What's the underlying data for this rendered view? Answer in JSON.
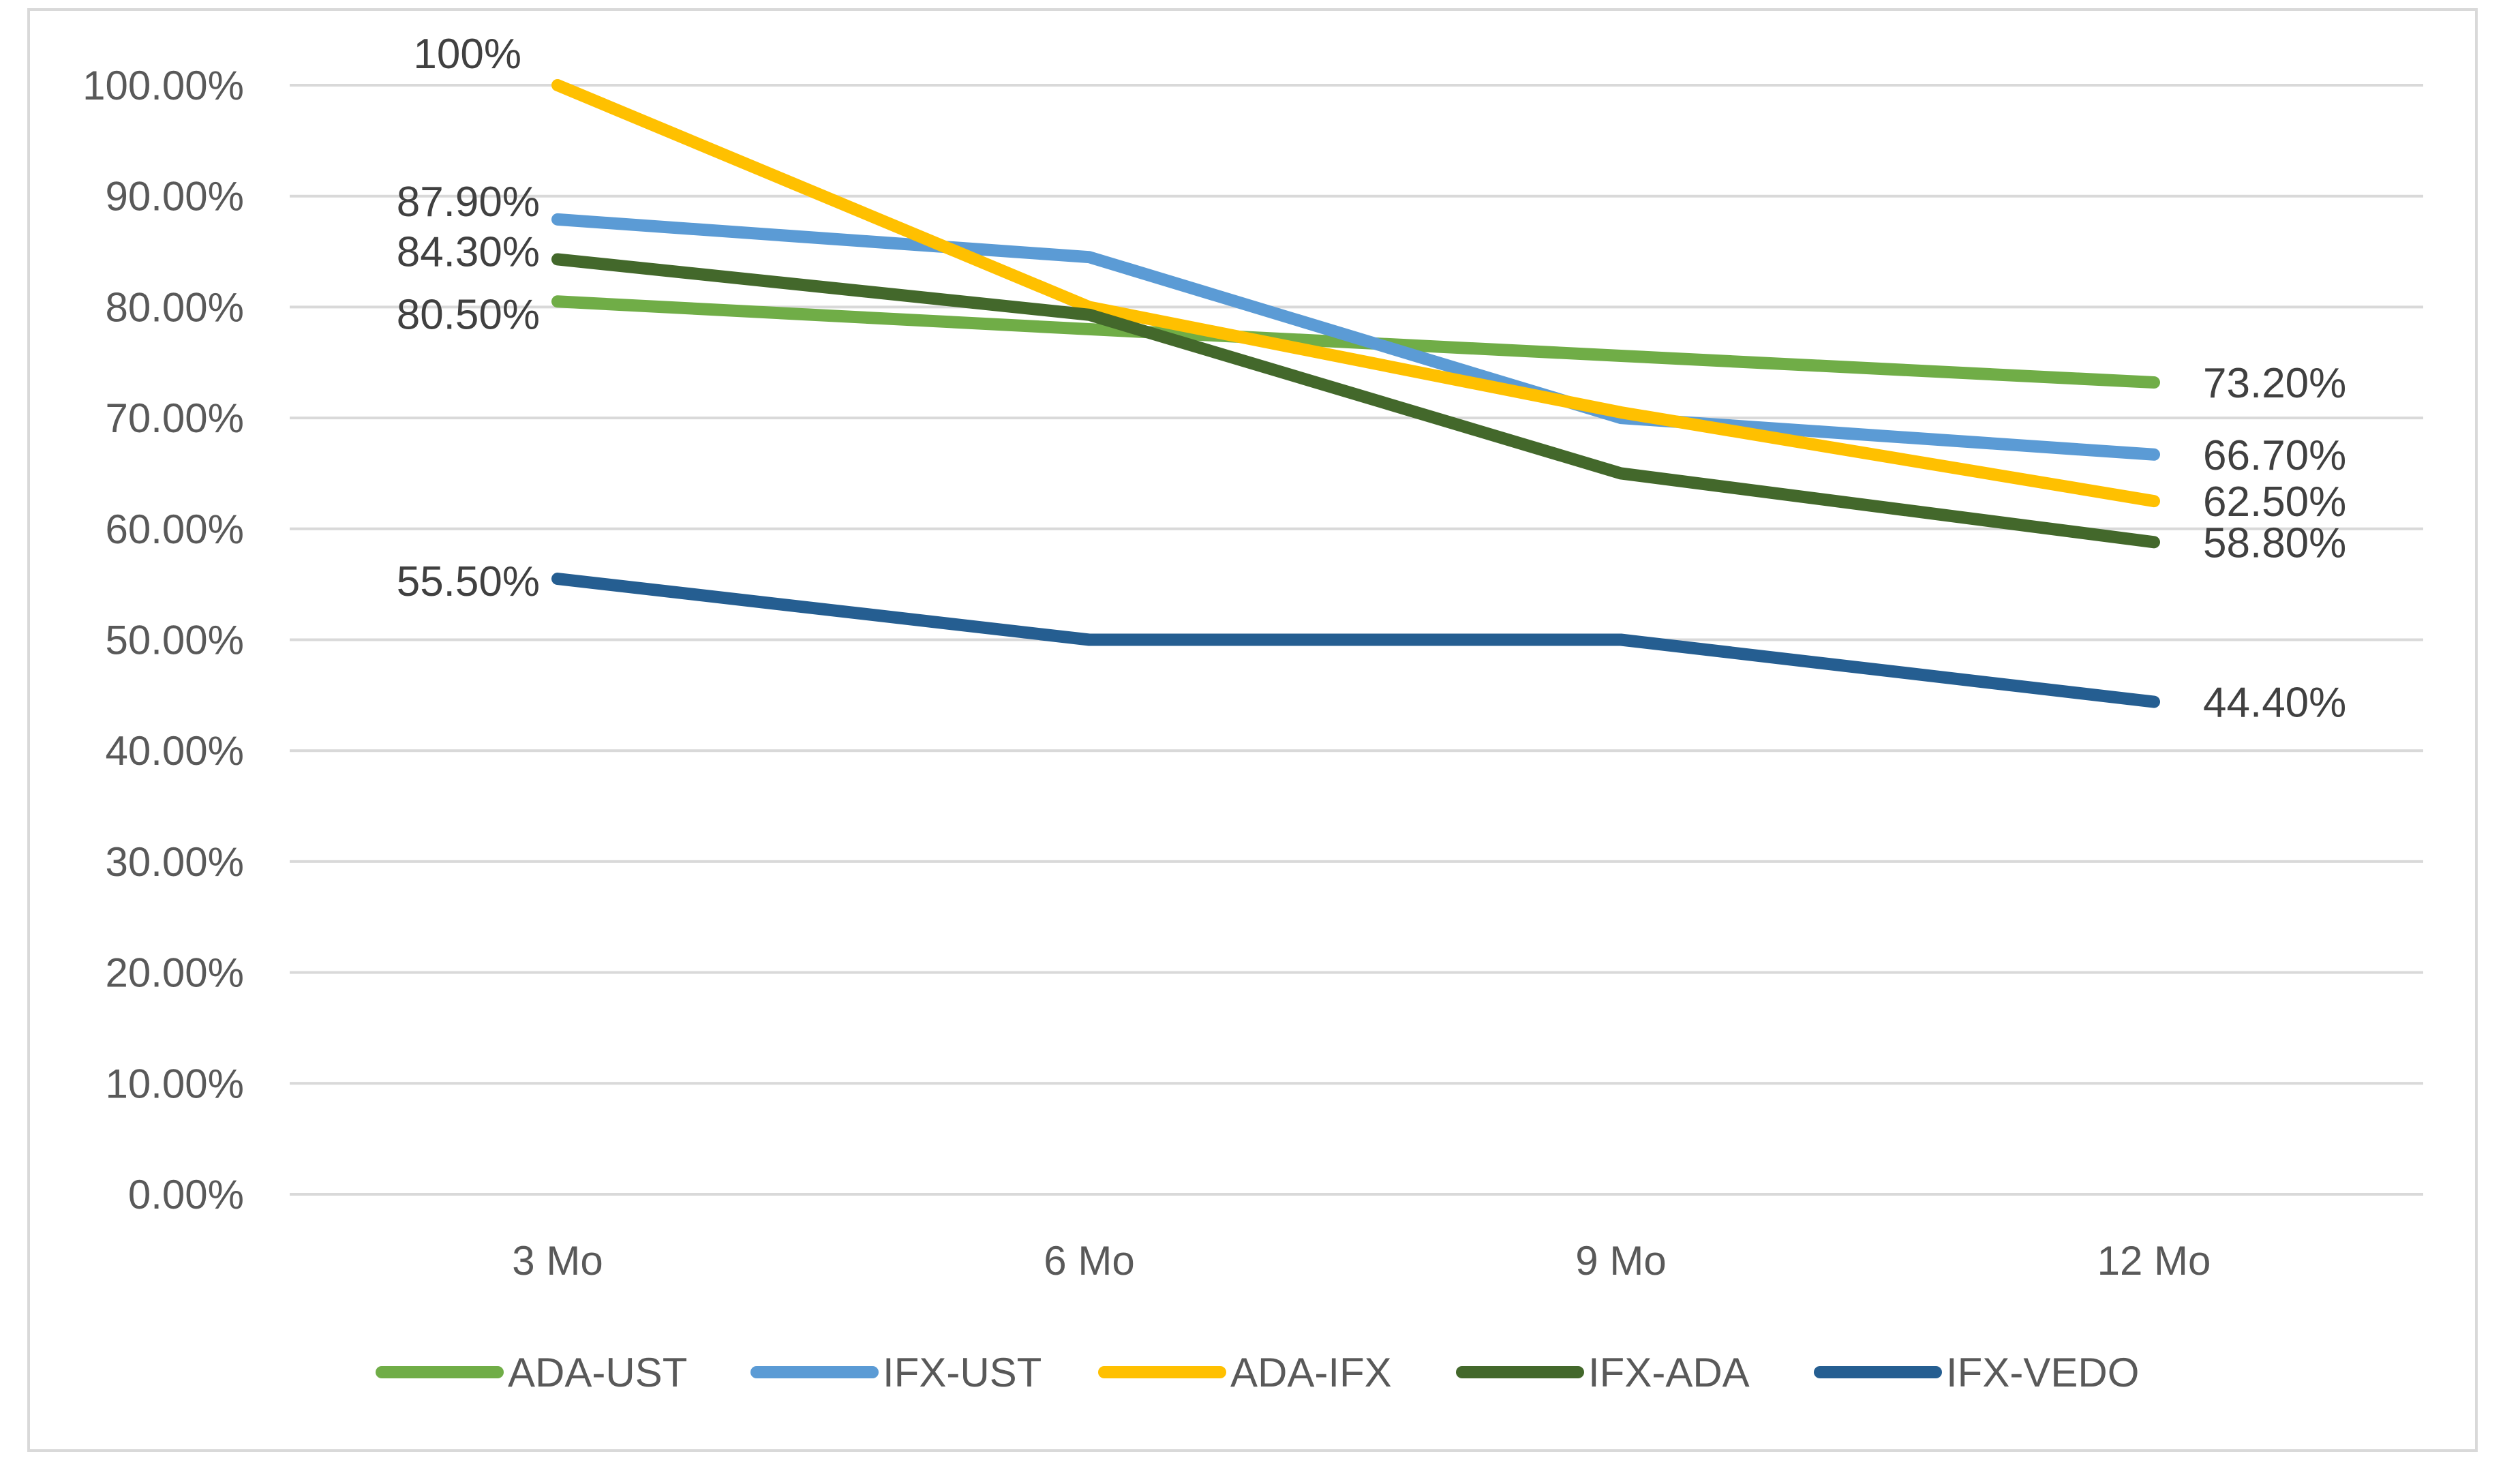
{
  "chart_data": {
    "type": "line",
    "title": "",
    "xlabel": "",
    "ylabel": "",
    "categories": [
      "3 Mo",
      "6 Mo",
      "9 Mo",
      "12 Mo"
    ],
    "ylim": [
      0,
      100
    ],
    "y_ticks": [
      0,
      10,
      20,
      30,
      40,
      50,
      60,
      70,
      80,
      90,
      100
    ],
    "y_tick_labels": [
      "0.00%",
      "10.00%",
      "20.00%",
      "30.00%",
      "40.00%",
      "50.00%",
      "60.00%",
      "70.00%",
      "80.00%",
      "90.00%",
      "100.00%"
    ],
    "grid": true,
    "legend_position": "bottom",
    "series": [
      {
        "name": "ADA-UST",
        "color": "#70ad47",
        "values": [
          80.5,
          78.0,
          75.6,
          73.2
        ],
        "start_label": "80.50%",
        "end_label": "73.20%"
      },
      {
        "name": "IFX-UST",
        "color": "#5b9bd5",
        "values": [
          87.9,
          84.5,
          70.0,
          66.7
        ],
        "start_label": "87.90%",
        "end_label": "66.70%"
      },
      {
        "name": "ADA-IFX",
        "color": "#ffc000",
        "values": [
          100.0,
          80.0,
          70.5,
          62.5
        ],
        "start_label": "100%",
        "end_label": "62.50%"
      },
      {
        "name": "IFX-ADA",
        "color": "#43682b",
        "values": [
          84.3,
          79.3,
          65.0,
          58.8
        ],
        "start_label": "84.30%",
        "end_label": "58.80%"
      },
      {
        "name": "IFX-VEDO",
        "color": "#255e91",
        "values": [
          55.5,
          50.0,
          50.0,
          44.4
        ],
        "start_label": "55.50%",
        "end_label": "44.40%"
      }
    ]
  }
}
